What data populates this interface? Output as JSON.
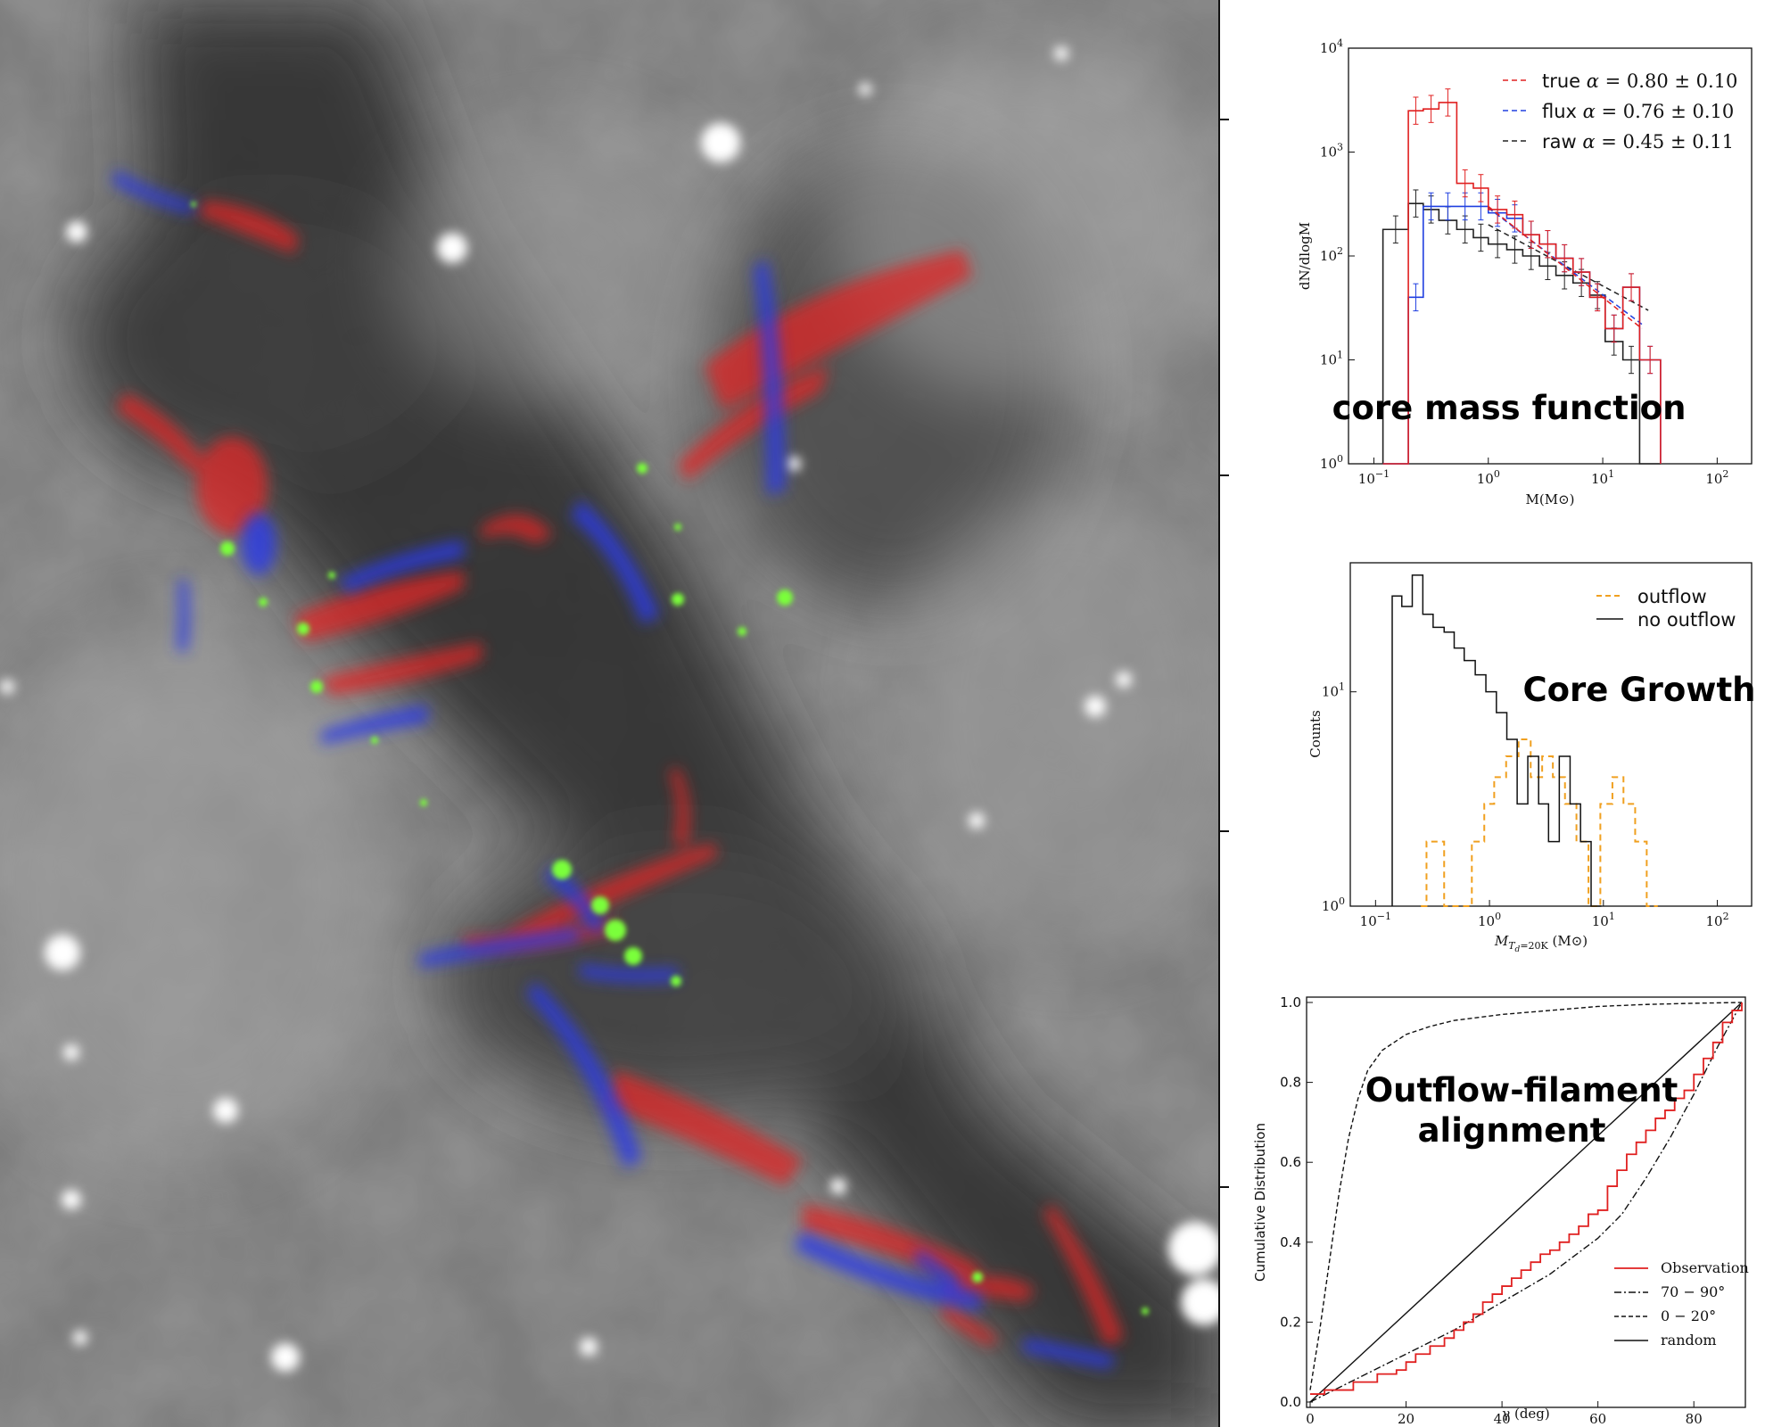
{
  "chart_data": [
    {
      "type": "histogram",
      "xscale": "log",
      "yscale": "log",
      "xlim": [
        0.06,
        200
      ],
      "ylim": [
        1,
        10000
      ],
      "xticks": [
        "10^{-1}",
        "10^{0}",
        "10^{1}",
        "10^{2}"
      ],
      "yticks": [
        "10^{0}",
        "10^{1}",
        "10^{2}",
        "10^{3}",
        "10^{4}"
      ],
      "xlabel": "M(M⊙)",
      "ylabel": "dN/dlogM",
      "annotation": "core mass function",
      "legend_position": "top-right",
      "bin_edges": [
        0.12,
        0.2,
        0.27,
        0.37,
        0.53,
        0.74,
        1.0,
        1.45,
        2.0,
        2.8,
        3.9,
        5.5,
        7.7,
        10.5,
        15,
        21,
        32
      ],
      "series": [
        {
          "name": "true",
          "legend": "true α = 0.80 ± 0.10",
          "color": "#e02020",
          "values": [
            1,
            2500,
            2600,
            3000,
            500,
            450,
            280,
            250,
            160,
            130,
            95,
            70,
            40,
            20,
            50,
            10
          ],
          "fit": {
            "style": "dashed",
            "x": [
              1.0,
              22
            ],
            "y": [
              300,
              20
            ]
          }
        },
        {
          "name": "flux",
          "legend": "flux α = 0.76 ± 0.10",
          "color": "#2040e0",
          "values": [
            1,
            40,
            300,
            300,
            300,
            300,
            260,
            230,
            160,
            130,
            95,
            70,
            40,
            20,
            50,
            10
          ],
          "fit": {
            "style": "dashed",
            "x": [
              1.0,
              22
            ],
            "y": [
              290,
              22
            ]
          }
        },
        {
          "name": "raw",
          "legend": "raw α = 0.45 ± 0.11",
          "color": "#222222",
          "values": [
            180,
            320,
            280,
            220,
            180,
            150,
            130,
            115,
            100,
            80,
            65,
            55,
            42,
            15,
            10,
            1
          ],
          "fit": {
            "style": "dashed",
            "x": [
              1.0,
              25
            ],
            "y": [
              200,
              30
            ]
          }
        }
      ]
    },
    {
      "type": "histogram",
      "xscale": "log",
      "yscale": "log",
      "xlim": [
        0.06,
        200
      ],
      "ylim": [
        1,
        40
      ],
      "xticks": [
        "10^{-1}",
        "10^{0}",
        "10^{1}",
        "10^{2}"
      ],
      "yticks": [
        "10^{0}",
        "10^{1}"
      ],
      "xlabel": "M_{Td=20K} (M⊙)",
      "ylabel": "Counts",
      "annotation": "Core Growth",
      "legend_position": "top-right",
      "series": [
        {
          "name": "outflow",
          "color": "#f0a020",
          "style": "dashed",
          "bin_edges": [
            0.25,
            0.28,
            0.4,
            0.55,
            0.7,
            0.9,
            1.1,
            1.4,
            1.8,
            2.3,
            2.9,
            3.6,
            4.6,
            5.8,
            7.4,
            9.4,
            12,
            15,
            19,
            24,
            30
          ],
          "values": [
            1,
            2,
            1,
            1,
            2,
            3,
            4,
            5,
            6,
            4,
            5,
            4,
            3,
            2,
            1,
            3,
            4,
            3,
            2,
            1
          ]
        },
        {
          "name": "no outflow",
          "color": "#111111",
          "style": "solid",
          "bin_edges": [
            0.14,
            0.17,
            0.21,
            0.26,
            0.32,
            0.4,
            0.49,
            0.6,
            0.75,
            0.93,
            1.15,
            1.42,
            1.75,
            2.17,
            2.7,
            3.3,
            4.1,
            5.1,
            6.3,
            7.8,
            9.6
          ],
          "values": [
            28,
            25,
            35,
            23,
            20,
            19,
            16,
            14,
            12,
            10,
            8,
            6,
            3,
            5,
            3,
            2,
            5,
            3,
            2,
            1
          ]
        }
      ]
    },
    {
      "type": "line",
      "xlim": [
        0,
        90
      ],
      "ylim": [
        0,
        1
      ],
      "xticks": [
        "0",
        "20",
        "40",
        "60",
        "80"
      ],
      "yticks": [
        "0.0",
        "0.2",
        "0.4",
        "0.6",
        "0.8",
        "1.0"
      ],
      "xlabel": "γ (deg)",
      "ylabel": "Cumulative Distribution",
      "annotation": [
        "Outflow-filament",
        "alignment"
      ],
      "legend_position": "bottom-right",
      "series": [
        {
          "name": "Observation",
          "color": "#e02020",
          "style": "solid",
          "x": [
            0,
            3,
            8,
            9,
            14,
            18,
            20,
            22,
            25,
            28,
            30,
            32,
            34,
            36,
            38,
            40,
            42,
            44,
            46,
            48,
            50,
            52,
            54,
            56,
            58,
            60,
            62,
            64,
            66,
            68,
            70,
            72,
            74,
            76,
            78,
            80,
            82,
            84,
            86,
            88,
            90
          ],
          "y": [
            0.02,
            0.03,
            0.03,
            0.05,
            0.07,
            0.08,
            0.1,
            0.12,
            0.14,
            0.16,
            0.18,
            0.2,
            0.22,
            0.25,
            0.27,
            0.29,
            0.31,
            0.33,
            0.35,
            0.37,
            0.38,
            0.4,
            0.42,
            0.44,
            0.47,
            0.48,
            0.54,
            0.58,
            0.62,
            0.65,
            0.68,
            0.71,
            0.73,
            0.76,
            0.78,
            0.82,
            0.86,
            0.9,
            0.95,
            0.98,
            1.0
          ]
        },
        {
          "name": "70 − 90°",
          "color": "#111111",
          "style": "dashdot",
          "x": [
            0,
            10,
            20,
            30,
            40,
            50,
            60,
            65,
            70,
            75,
            80,
            85,
            90
          ],
          "y": [
            0.0,
            0.06,
            0.12,
            0.18,
            0.25,
            0.32,
            0.41,
            0.47,
            0.56,
            0.66,
            0.77,
            0.89,
            1.0
          ]
        },
        {
          "name": "0 − 20°",
          "color": "#111111",
          "style": "dashed",
          "x": [
            0,
            2,
            4,
            6,
            8,
            10,
            12,
            15,
            20,
            25,
            30,
            40,
            50,
            60,
            70,
            80,
            90
          ],
          "y": [
            0.03,
            0.18,
            0.35,
            0.52,
            0.66,
            0.76,
            0.83,
            0.88,
            0.92,
            0.94,
            0.955,
            0.97,
            0.98,
            0.99,
            0.995,
            0.998,
            1.0
          ]
        },
        {
          "name": "random",
          "color": "#111111",
          "style": "solid",
          "x": [
            0,
            90
          ],
          "y": [
            0.0,
            1.0
          ]
        }
      ]
    }
  ],
  "image_panel": {
    "description_colors": {
      "background": "#7a7a7a",
      "red": "#e02828",
      "blue": "#2a3ae8",
      "green": "#7aff3a"
    }
  }
}
